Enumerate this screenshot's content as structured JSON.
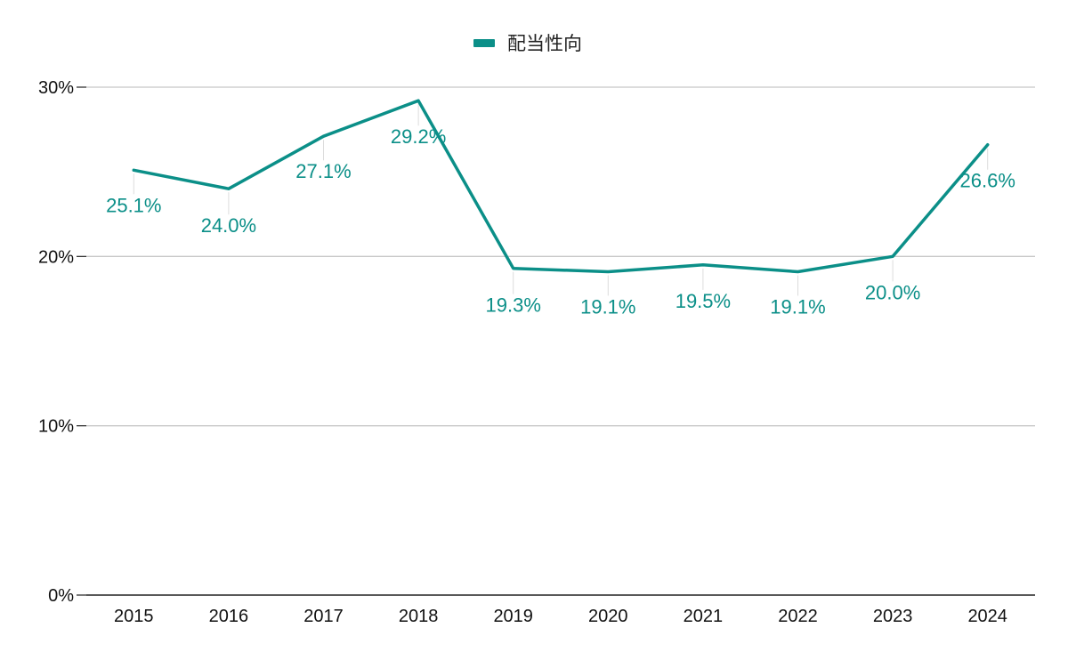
{
  "chart_data": {
    "type": "line",
    "title": "",
    "xlabel": "",
    "ylabel": "",
    "categories": [
      "2015",
      "2016",
      "2017",
      "2018",
      "2019",
      "2020",
      "2021",
      "2022",
      "2023",
      "2024"
    ],
    "series": [
      {
        "name": "配当性向",
        "values": [
          25.1,
          24.0,
          27.1,
          29.2,
          19.3,
          19.1,
          19.5,
          19.1,
          20.0,
          26.6
        ],
        "labels": [
          "25.1%",
          "24.0%",
          "27.1%",
          "29.2%",
          "19.3%",
          "19.1%",
          "19.5%",
          "19.1%",
          "20.0%",
          "26.6%"
        ],
        "color": "#0b8f88"
      }
    ],
    "ylim": [
      0,
      30
    ],
    "yticks": [
      0,
      10,
      20,
      30
    ],
    "ytick_labels": [
      "0%",
      "10%",
      "20%",
      "30%"
    ],
    "grid": true,
    "legend_position": "top"
  }
}
